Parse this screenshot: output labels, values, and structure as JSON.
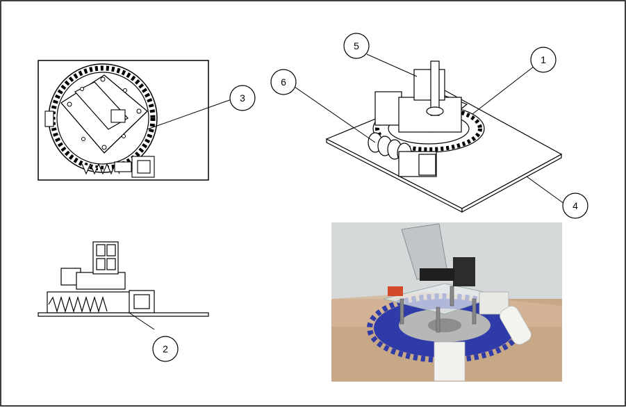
{
  "callouts": [
    {
      "id": "1",
      "text": "1"
    },
    {
      "id": "2",
      "text": "2"
    },
    {
      "id": "3",
      "text": "3"
    },
    {
      "id": "4",
      "text": "4"
    },
    {
      "id": "5",
      "text": "5"
    },
    {
      "id": "6",
      "text": "6"
    }
  ],
  "colors": {
    "line": "#000000",
    "gear_blue": "#2e3aa8",
    "worm_white": "#f2f2ee",
    "photo_wall": "#d9dcdd",
    "photo_table": "#c9a98a"
  },
  "views": {
    "top_view": "top-view-drawing",
    "side_view": "side-view-drawing",
    "iso_view": "isometric-assembly-drawing",
    "photo": "prototype-photo"
  }
}
